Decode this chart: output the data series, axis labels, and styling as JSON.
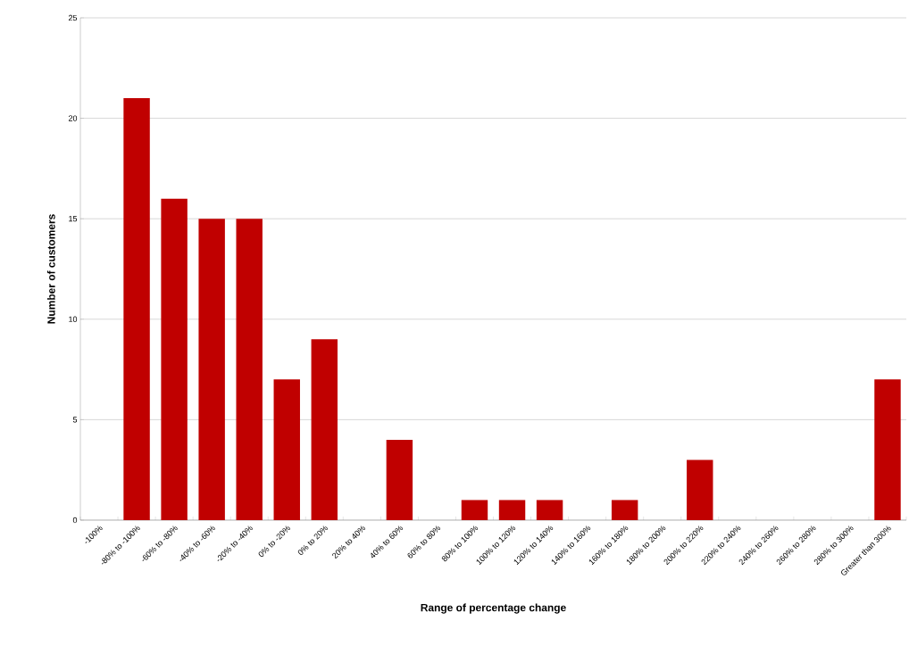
{
  "chart_data": {
    "type": "bar",
    "xlabel": "Range of percentage change",
    "ylabel": "Number of customers",
    "categories": [
      "-100%",
      "-80% to -100%",
      "-60% to -80%",
      "-40% to -60%",
      "-20% to -40%",
      "0% to -20%",
      "0% to 20%",
      "20% to 40%",
      "40% to 60%",
      "60% to 80%",
      "80% to 100%",
      "100% to 120%",
      "120% to 140%",
      "140% to 160%",
      "160% to 180%",
      "180% to 200%",
      "200% to 220%",
      "220% to 240%",
      "240% to 260%",
      "260% to 280%",
      "280% to 300%",
      "Greater than 300%"
    ],
    "values": [
      0,
      21,
      16,
      15,
      15,
      7,
      9,
      0,
      4,
      0,
      1,
      1,
      1,
      0,
      1,
      0,
      3,
      0,
      0,
      0,
      0,
      7
    ],
    "color": "#c00000",
    "ylim": [
      0,
      25
    ],
    "yticks": [
      0,
      5,
      10,
      15,
      20,
      25
    ],
    "grid": "y"
  }
}
